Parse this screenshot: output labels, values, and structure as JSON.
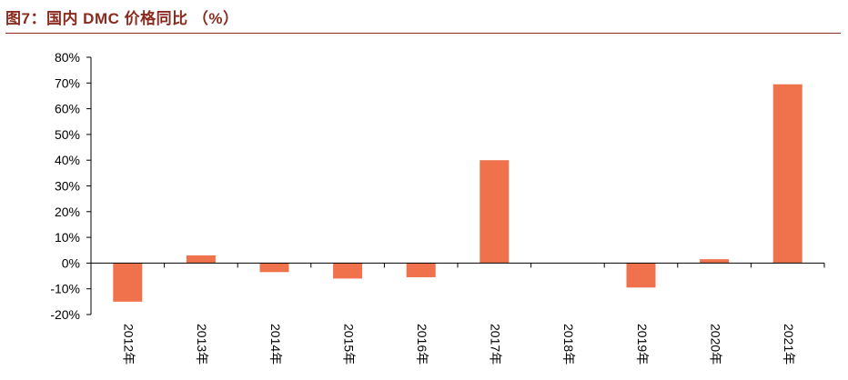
{
  "figure": {
    "title": "图7：国内 DMC 价格同比 （%）"
  },
  "colors": {
    "title": "#8B2A1E",
    "bar": "#EF724C",
    "axis": "#000000"
  },
  "chart_data": {
    "type": "bar",
    "title": "图7：国内 DMC 价格同比 （%）",
    "categories": [
      "2012年",
      "2013年",
      "2014年",
      "2015年",
      "2016年",
      "2017年",
      "2018年",
      "2019年",
      "2020年",
      "2021年"
    ],
    "series": [
      {
        "values": [
          -15,
          3,
          -3.5,
          -6,
          -5.5,
          40,
          0,
          -9.5,
          1.5,
          69.5
        ]
      }
    ],
    "ylim": [
      -20,
      80
    ],
    "yticks": [
      -20,
      -10,
      0,
      10,
      20,
      30,
      40,
      50,
      60,
      70,
      80
    ],
    "ytick_labels": [
      "-20%",
      "-10%",
      "0%",
      "10%",
      "20%",
      "30%",
      "40%",
      "50%",
      "60%",
      "70%",
      "80%"
    ],
    "xlabel": "",
    "ylabel": "",
    "grid": false,
    "legend": "none"
  }
}
